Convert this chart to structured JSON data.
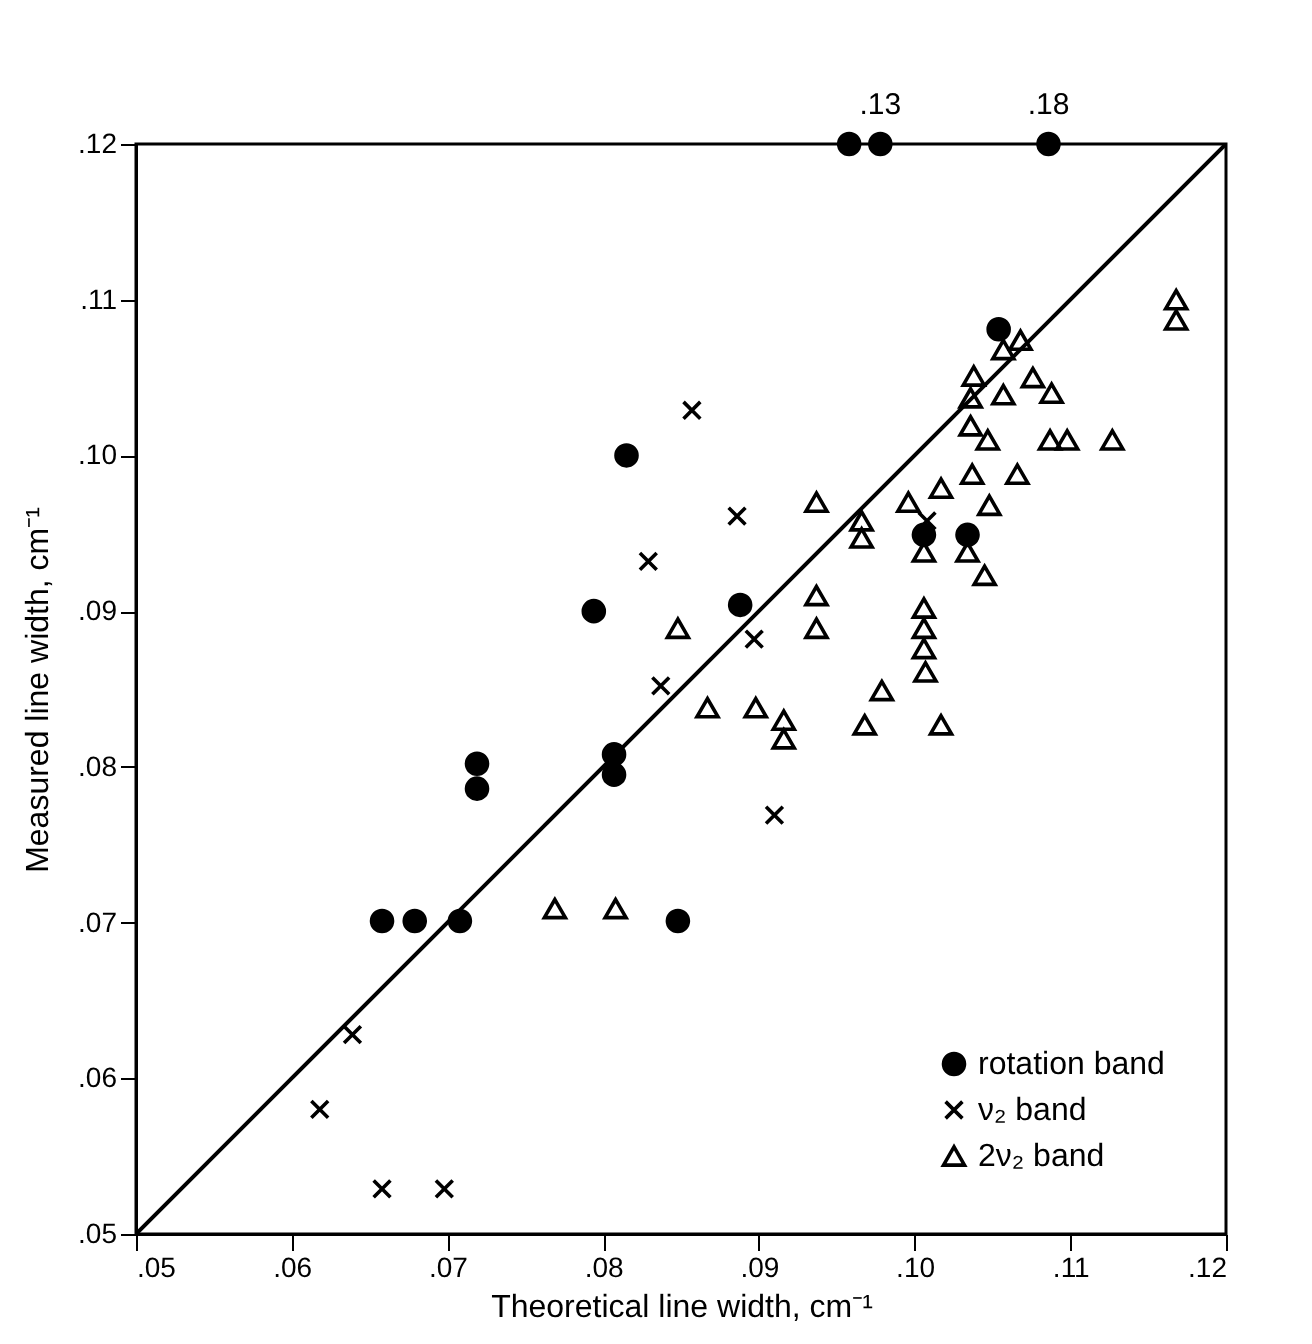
{
  "chart_data": {
    "type": "scatter",
    "xlabel": "Theoretical line width, cm⁻¹",
    "ylabel": "Measured line width, cm⁻¹",
    "xlim": [
      0.05,
      0.12
    ],
    "ylim": [
      0.05,
      0.12
    ],
    "xticks": [
      {
        "value": 0.05,
        "label": ".05"
      },
      {
        "value": 0.06,
        "label": ".06"
      },
      {
        "value": 0.07,
        "label": ".07"
      },
      {
        "value": 0.08,
        "label": ".08"
      },
      {
        "value": 0.09,
        "label": ".09"
      },
      {
        "value": 0.1,
        "label": ".10"
      },
      {
        "value": 0.11,
        "label": ".11"
      },
      {
        "value": 0.12,
        "label": ".12"
      }
    ],
    "yticks": [
      {
        "value": 0.05,
        "label": ".05"
      },
      {
        "value": 0.06,
        "label": ".06"
      },
      {
        "value": 0.07,
        "label": ".07"
      },
      {
        "value": 0.08,
        "label": ".08"
      },
      {
        "value": 0.09,
        "label": ".09"
      },
      {
        "value": 0.1,
        "label": ".10"
      },
      {
        "value": 0.11,
        "label": ".11"
      },
      {
        "value": 0.12,
        "label": ".12"
      }
    ],
    "grid": false,
    "legend": "bottom right",
    "annotations": [
      {
        "text": ".13",
        "x": 0.0978,
        "y": 0.12
      },
      {
        "text": ".18",
        "x": 0.1086,
        "y": 0.12
      }
    ],
    "series": [
      {
        "name": "rotation band",
        "color": "#000000",
        "marker": "circle",
        "x": [
          0.0815,
          0.0794,
          0.0958,
          0.0978,
          0.1086,
          0.1054,
          0.0888,
          0.1006,
          0.1034,
          0.0658,
          0.0679,
          0.0708,
          0.0719,
          0.0719,
          0.0807,
          0.0807,
          0.0848
        ],
        "values": [
          0.1,
          0.09,
          0.12,
          0.12,
          0.12,
          0.1081,
          0.0904,
          0.0949,
          0.0949,
          0.0701,
          0.0701,
          0.0701,
          0.0802,
          0.0786,
          0.0808,
          0.0795,
          0.0701
        ]
      },
      {
        "name": "ν₂ band",
        "color": "#000000",
        "marker": "cross",
        "x": [
          0.0639,
          0.0618,
          0.0658,
          0.0698,
          0.0857,
          0.0886,
          0.0829,
          0.0897,
          0.0837,
          0.091,
          0.1008
        ],
        "values": [
          0.0628,
          0.058,
          0.0529,
          0.0529,
          0.1029,
          0.0961,
          0.0932,
          0.0882,
          0.0852,
          0.0769,
          0.0958
        ]
      },
      {
        "name": "2ν₂ band",
        "color": "#000000",
        "marker": "triangle",
        "x": [
          0.0769,
          0.0808,
          0.0867,
          0.0898,
          0.0916,
          0.0916,
          0.0968,
          0.0979,
          0.1007,
          0.1017,
          0.0848,
          0.0937,
          0.0937,
          0.0937,
          0.0966,
          0.0966,
          0.0996,
          0.1017,
          0.1006,
          0.1006,
          0.1006,
          0.1006,
          0.1034,
          0.1045,
          0.1048,
          0.1037,
          0.1066,
          0.1036,
          0.1047,
          0.1036,
          0.1038,
          0.1057,
          0.1057,
          0.1068,
          0.1076,
          0.1088,
          0.1087,
          0.1098,
          0.1127,
          0.1168,
          0.1168
        ],
        "values": [
          0.0709,
          0.0709,
          0.0838,
          0.0838,
          0.083,
          0.0818,
          0.0827,
          0.0849,
          0.0861,
          0.0827,
          0.0889,
          0.097,
          0.091,
          0.0889,
          0.0958,
          0.0947,
          0.097,
          0.0979,
          0.0938,
          0.0902,
          0.0889,
          0.0876,
          0.0938,
          0.0923,
          0.0968,
          0.0988,
          0.0988,
          0.1019,
          0.101,
          0.1037,
          0.1051,
          0.1039,
          0.1068,
          0.1074,
          0.105,
          0.104,
          0.101,
          0.101,
          0.101,
          0.11,
          0.1087
        ]
      },
      {
        "type": "line",
        "color": "#000000",
        "line_style": "solid",
        "x": [
          0.05,
          0.12
        ],
        "values": [
          0.05,
          0.12
        ]
      }
    ]
  }
}
